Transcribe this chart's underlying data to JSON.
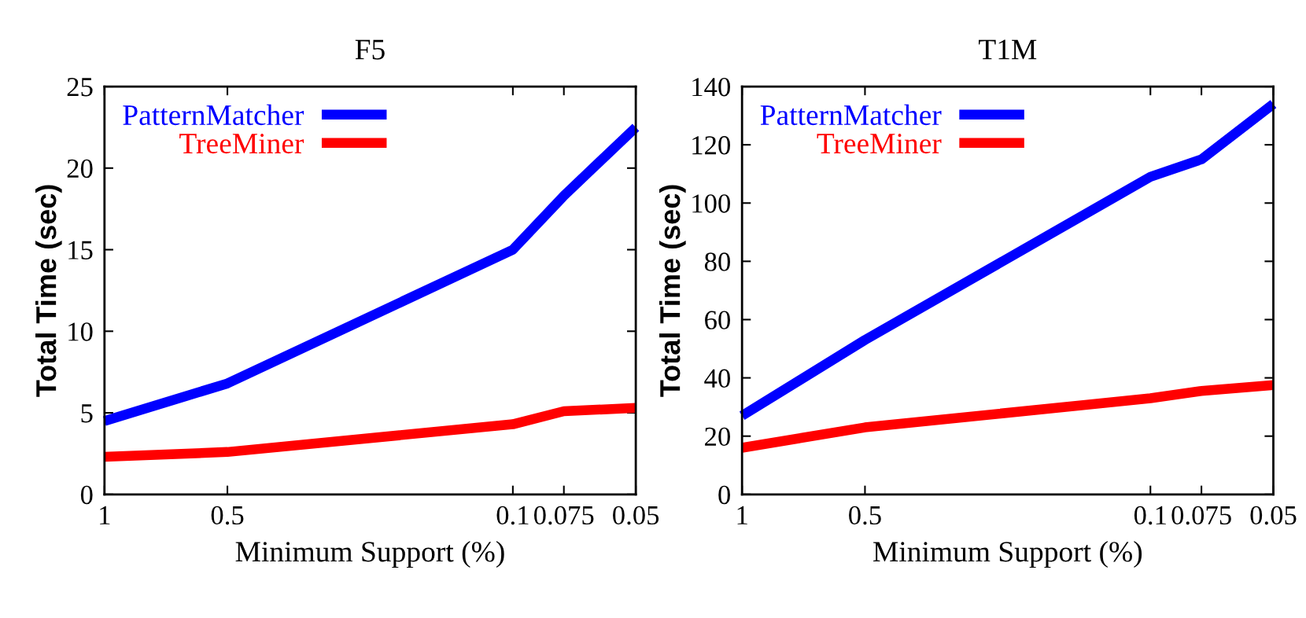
{
  "chart_data": [
    {
      "type": "line",
      "title": "F5",
      "xlabel": "Minimum Support (%)",
      "ylabel": "Total Time (sec)",
      "log": "x",
      "x": [
        1,
        0.5,
        0.1,
        0.075,
        0.05
      ],
      "xlim": [
        1,
        0.05
      ],
      "xticks": [
        1,
        0.5,
        0.1,
        0.075,
        0.05
      ],
      "ylim": [
        0,
        25
      ],
      "yticks": [
        0,
        5,
        10,
        15,
        20,
        25
      ],
      "grid": false,
      "legend": "top left",
      "marker": "none",
      "line_style": "solid",
      "series": [
        {
          "name": "PatternMatcher",
          "color": "#0000ff",
          "values": [
            4.5,
            6.8,
            15.0,
            18.3,
            22.5
          ]
        },
        {
          "name": "TreeMiner",
          "color": "#ff0000",
          "values": [
            2.3,
            2.6,
            4.3,
            5.1,
            5.3
          ]
        }
      ]
    },
    {
      "type": "line",
      "title": "T1M",
      "xlabel": "Minimum Support (%)",
      "ylabel": "Total Time (sec)",
      "log": "x",
      "x": [
        1,
        0.5,
        0.1,
        0.075,
        0.05
      ],
      "xlim": [
        1,
        0.05
      ],
      "xticks": [
        1,
        0.5,
        0.1,
        0.075,
        0.05
      ],
      "ylim": [
        0,
        140
      ],
      "yticks": [
        0,
        20,
        40,
        60,
        80,
        100,
        120,
        140
      ],
      "grid": false,
      "legend": "top left",
      "marker": "none",
      "line_style": "solid",
      "series": [
        {
          "name": "PatternMatcher",
          "color": "#0000ff",
          "values": [
            27,
            53,
            109,
            115,
            134
          ]
        },
        {
          "name": "TreeMiner",
          "color": "#ff0000",
          "values": [
            16,
            23,
            33,
            35.5,
            37.5
          ]
        }
      ]
    }
  ]
}
